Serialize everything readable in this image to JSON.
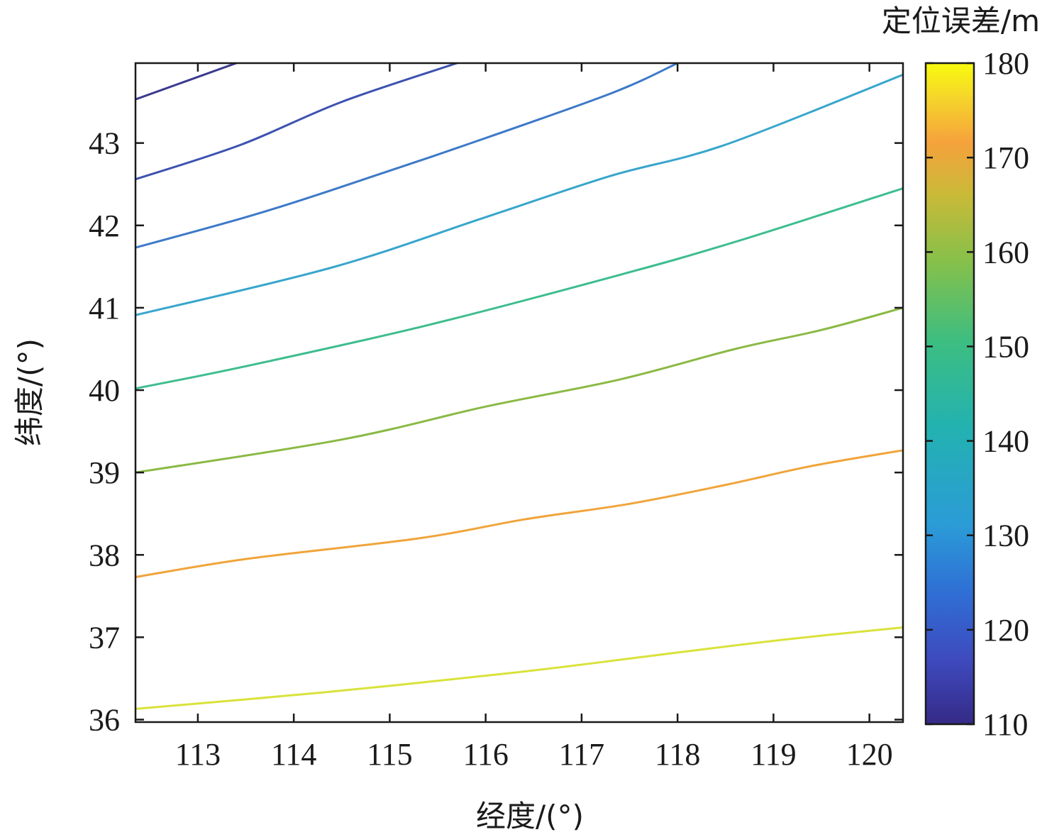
{
  "chart_data": {
    "type": "contour",
    "xlabel": "经度/(°)",
    "ylabel": "纬度/(°)",
    "colorbar_label": "定位误差/m",
    "xlim": [
      112.35,
      120.35
    ],
    "ylim": [
      35.97,
      43.97
    ],
    "x_ticks": [
      113,
      114,
      115,
      116,
      117,
      118,
      119,
      120
    ],
    "y_ticks": [
      36,
      37,
      38,
      39,
      40,
      41,
      42,
      43
    ],
    "colorbar_range": [
      110,
      180
    ],
    "colorbar_ticks": [
      110,
      120,
      130,
      140,
      150,
      160,
      170,
      180
    ],
    "colormap": [
      "#352a87",
      "#3e4bbf",
      "#2f6fd5",
      "#2b9bd7",
      "#23b2b0",
      "#3dbe81",
      "#86c04a",
      "#c9ba38",
      "#f6a23c",
      "#f5d72a",
      "#f9fb0e"
    ],
    "contours": [
      {
        "level": 110,
        "color": "#3b3a8f",
        "points": [
          [
            112.35,
            43.53
          ],
          [
            113.4,
            43.97
          ]
        ]
      },
      {
        "level": 120,
        "color": "#3d52b0",
        "points": [
          [
            112.35,
            42.56
          ],
          [
            113.45,
            42.98
          ],
          [
            114.5,
            43.5
          ],
          [
            115.7,
            43.97
          ]
        ]
      },
      {
        "level": 130,
        "color": "#3d79c8",
        "points": [
          [
            112.35,
            41.73
          ],
          [
            113.5,
            42.1
          ],
          [
            114.4,
            42.43
          ],
          [
            115.8,
            42.98
          ],
          [
            117.3,
            43.6
          ],
          [
            118.0,
            43.97
          ]
        ]
      },
      {
        "level": 140,
        "color": "#38a5cc",
        "points": [
          [
            112.35,
            40.91
          ],
          [
            114.4,
            41.49
          ],
          [
            116.0,
            42.1
          ],
          [
            117.3,
            42.6
          ],
          [
            118.5,
            42.98
          ],
          [
            120.35,
            43.83
          ]
        ]
      },
      {
        "level": 150,
        "color": "#3dbd8e",
        "points": [
          [
            112.35,
            40.02
          ],
          [
            113.5,
            40.29
          ],
          [
            115.4,
            40.79
          ],
          [
            117.4,
            41.4
          ],
          [
            118.6,
            41.8
          ],
          [
            120.35,
            42.45
          ]
        ]
      },
      {
        "level": 160,
        "color": "#8ab944",
        "points": [
          [
            112.35,
            39.0
          ],
          [
            114.5,
            39.4
          ],
          [
            116.0,
            39.8
          ],
          [
            117.4,
            40.13
          ],
          [
            118.6,
            40.5
          ],
          [
            119.5,
            40.73
          ],
          [
            120.35,
            41.0
          ]
        ]
      },
      {
        "level": 170,
        "color": "#f0a43a",
        "points": [
          [
            112.35,
            37.73
          ],
          [
            113.5,
            37.95
          ],
          [
            115.3,
            38.2
          ],
          [
            116.4,
            38.43
          ],
          [
            117.5,
            38.62
          ],
          [
            118.5,
            38.85
          ],
          [
            119.4,
            39.08
          ],
          [
            120.35,
            39.27
          ]
        ]
      },
      {
        "level": 180,
        "color": "#d9e23a",
        "points": [
          [
            112.35,
            36.13
          ],
          [
            114.3,
            36.33
          ],
          [
            116.3,
            36.57
          ],
          [
            117.9,
            36.8
          ],
          [
            119.1,
            36.97
          ],
          [
            120.35,
            37.12
          ]
        ]
      }
    ]
  }
}
